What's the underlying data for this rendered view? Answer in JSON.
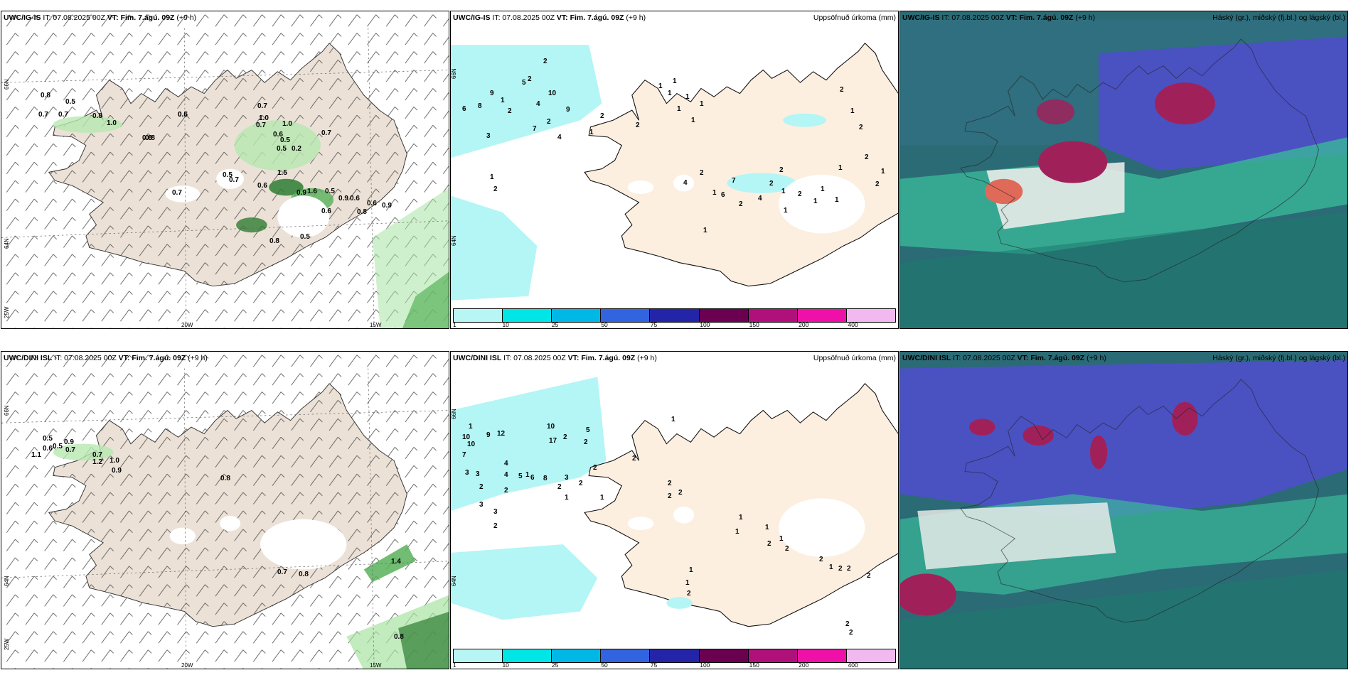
{
  "colorbar": {
    "ticks": [
      "1",
      "10",
      "25",
      "50",
      "75",
      "100",
      "150",
      "200",
      "400"
    ],
    "colors": [
      "#b8f6f6",
      "#00e5e5",
      "#00b8e6",
      "#3264e0",
      "#2424a8",
      "#6c0050",
      "#b0107a",
      "#ee10a8",
      "#f2b8f0"
    ]
  },
  "colors": {
    "land": "#ece1d6",
    "precip_land": "#fcefe0",
    "precip_light": "#b4f5f5",
    "cloud_ocean": "#2b6b75",
    "cloud_high": "#4a52c2",
    "cloud_mid": "#a0215a",
    "cloud_low": "#3ab89a"
  },
  "panels": [
    {
      "model": "UWC/IG-IS",
      "it": "IT: 07.08.2025 00Z",
      "vt": "VT: Fim. 7.ágú. 09Z",
      "lead": "(+9 h)",
      "axes": {
        "lat_top": "66N",
        "lat_mid": "64N",
        "lon_left": "25W",
        "lon_a": "20W",
        "lon_b": "15W"
      },
      "values": [
        "0.8",
        "0.7",
        "0.5",
        "0.8",
        "0.8",
        "0.6",
        "0.7",
        "1.0",
        "0.5",
        "0.8",
        "0.7",
        "1.0",
        "0.7",
        "1.0",
        "0.6",
        "0.5",
        "0.5",
        "0.2",
        "0.7",
        "0.5",
        "0.6",
        "1.5",
        "0.9",
        "1.6",
        "0.5",
        "0.6",
        "0.6",
        "0.9",
        "0.8",
        "0.7",
        "0.9",
        "0.6",
        "0.7",
        "0.8",
        "0.5"
      ]
    },
    {
      "model": "UWC/IG-IS",
      "it": "IT: 07.08.2025 00Z",
      "vt": "VT: Fim. 7.ágú. 09Z",
      "lead": "(+9 h)",
      "title": "Uppsöfnuð úrkoma (mm)",
      "axes": {
        "lat_top": "66N",
        "lat_mid": "64N"
      },
      "values": [
        "2",
        "5",
        "9",
        "8",
        "6",
        "3",
        "1",
        "2",
        "4",
        "2",
        "7",
        "10",
        "9",
        "4",
        "2",
        "1",
        "2",
        "2",
        "1",
        "2",
        "1",
        "1",
        "1",
        "1",
        "1",
        "1",
        "1",
        "4",
        "2",
        "7",
        "6",
        "1",
        "2",
        "4",
        "2",
        "2",
        "2",
        "1",
        "1",
        "1",
        "1",
        "1",
        "2",
        "1",
        "2",
        "1",
        "2",
        "2",
        "1",
        "1"
      ]
    },
    {
      "model": "UWC/IG-IS",
      "it": "IT: 07.08.2025 00Z",
      "vt": "VT: Fim. 7.ágú. 09Z",
      "lead": "(+9 h)",
      "title": "Háský (gr.), miðský (fj.bl.) og lágský (bl.)"
    },
    {
      "model": "UWC/DINI ISL",
      "it": "IT: 07.08.2025 00Z",
      "vt": "VT: Fim. 7.ágú. 09Z",
      "lead": "(+9 h)",
      "axes": {
        "lat_top": "66N",
        "lat_mid": "64N",
        "lon_left": "25W",
        "lon_a": "20W",
        "lon_b": "15W"
      },
      "values": [
        "0.5",
        "0.6",
        "0.5",
        "1.1",
        "0.9",
        "0.7",
        "0.7",
        "1.0",
        "0.9",
        "1.2",
        "0.8",
        "0.7",
        "0.8",
        "1.4",
        "0.8"
      ]
    },
    {
      "model": "UWC/DINI ISL",
      "it": "IT: 07.08.2025 00Z",
      "vt": "VT: Fim. 7.ágú. 09Z",
      "lead": "(+9 h)",
      "title": "Uppsöfnuð úrkoma (mm)",
      "axes": {
        "lat_top": "66N",
        "lat_mid": "64N"
      },
      "values": [
        "12",
        "10",
        "9",
        "10",
        "7",
        "3",
        "3",
        "4",
        "2",
        "1",
        "4",
        "5",
        "6",
        "8",
        "3",
        "2",
        "3",
        "2",
        "3",
        "2",
        "1",
        "10",
        "17",
        "2",
        "5",
        "2",
        "1",
        "2",
        "2",
        "1",
        "1",
        "2",
        "2",
        "2",
        "2",
        "1",
        "1",
        "1",
        "2",
        "1",
        "2",
        "2",
        "1",
        "2",
        "2",
        "2",
        "1",
        "1",
        "2",
        "2",
        "2"
      ]
    },
    {
      "model": "UWC/DINI ISL",
      "it": "IT: 07.08.2025 00Z",
      "vt": "VT: Fim. 7.ágú. 09Z",
      "lead": "(+9 h)",
      "title": "Háský (gr.), miðský (fj.bl.) og lágský (bl.)"
    }
  ]
}
